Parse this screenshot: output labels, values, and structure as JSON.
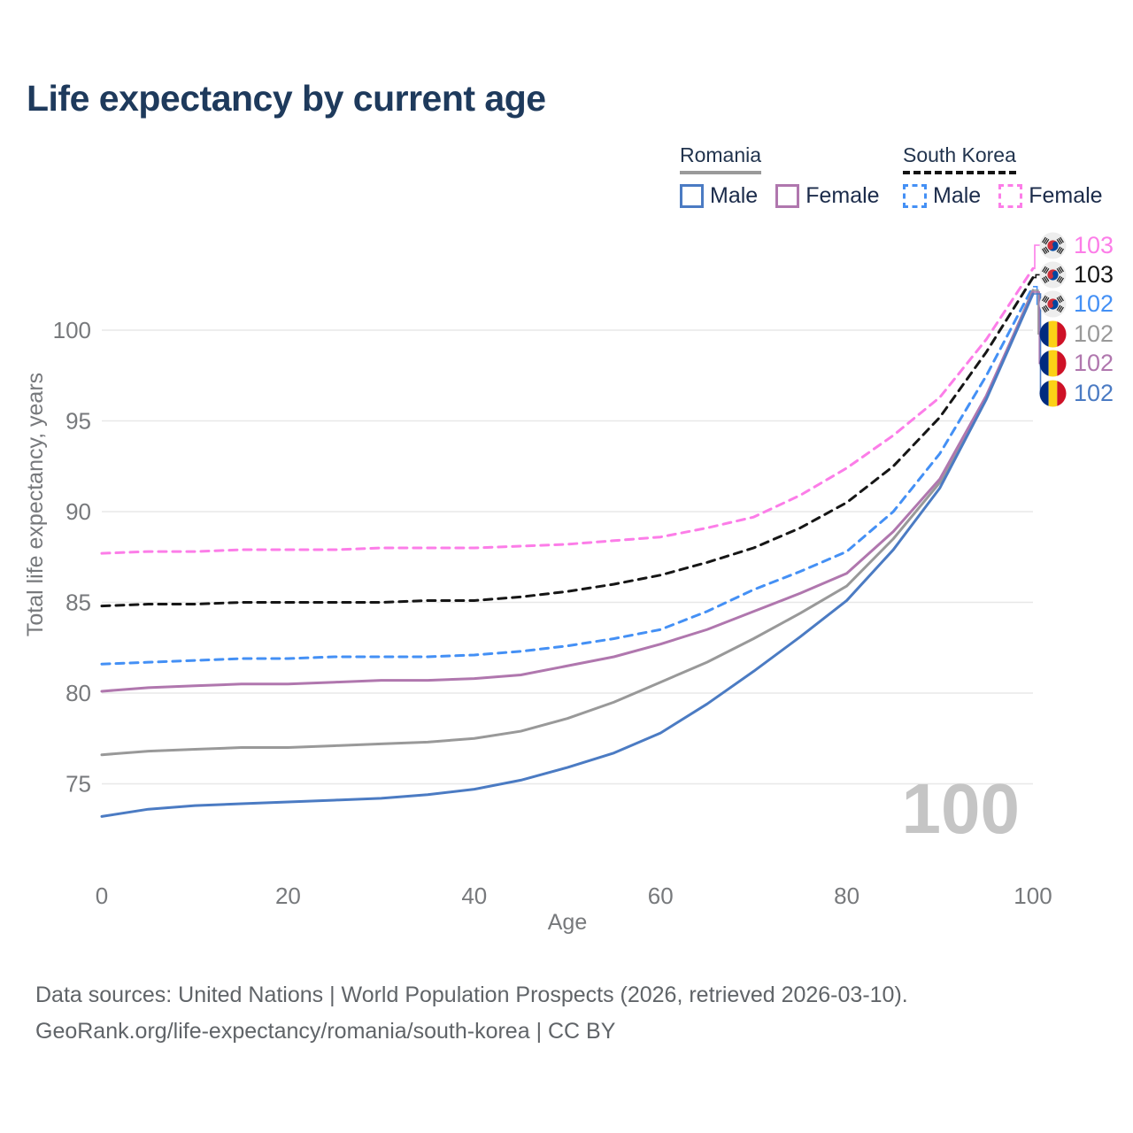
{
  "title": "Life expectancy by current age",
  "legend": {
    "groups": [
      {
        "country": "Romania",
        "line_style": "solid",
        "underline_color": "#9a9a9a",
        "items": [
          {
            "label": "Male",
            "series": "ro_male"
          },
          {
            "label": "Female",
            "series": "ro_female"
          }
        ]
      },
      {
        "country": "South Korea",
        "line_style": "dashed",
        "underline_color": "#141414",
        "items": [
          {
            "label": "Male",
            "series": "kr_male"
          },
          {
            "label": "Female",
            "series": "kr_female"
          }
        ]
      }
    ]
  },
  "chart_data": {
    "type": "line",
    "title": "Life expectancy by current age",
    "xlabel": "Age",
    "ylabel": "Total life expectancy, years",
    "x_ticks": [
      0,
      20,
      40,
      60,
      80,
      100
    ],
    "y_ticks": [
      75,
      80,
      85,
      90,
      95,
      100
    ],
    "xlim": [
      0,
      100
    ],
    "ylim": [
      72.5,
      105
    ],
    "grid": "horizontal-only",
    "legend_position": "top-right",
    "watermark": "100",
    "ages": [
      0,
      5,
      10,
      15,
      20,
      25,
      30,
      35,
      40,
      45,
      50,
      55,
      60,
      65,
      70,
      75,
      80,
      85,
      90,
      95,
      100
    ],
    "series": [
      {
        "id": "kr_female",
        "name": "South Korea Female",
        "country": "South Korea",
        "flag": "kr",
        "color": "#fc7de8",
        "dash": true,
        "end_label": "103",
        "values": [
          87.7,
          87.8,
          87.8,
          87.9,
          87.9,
          87.9,
          88.0,
          88.0,
          88.0,
          88.1,
          88.2,
          88.4,
          88.6,
          89.1,
          89.7,
          90.9,
          92.4,
          94.2,
          96.3,
          99.5,
          103.4
        ]
      },
      {
        "id": "kr_combined",
        "name": "South Korea Combined",
        "country": "South Korea",
        "flag": "kr",
        "color": "#161616",
        "dash": true,
        "end_label": "103",
        "values": [
          84.8,
          84.9,
          84.9,
          85.0,
          85.0,
          85.0,
          85.0,
          85.1,
          85.1,
          85.3,
          85.6,
          86.0,
          86.5,
          87.2,
          88.0,
          89.1,
          90.5,
          92.5,
          95.2,
          98.8,
          102.9
        ]
      },
      {
        "id": "kr_male",
        "name": "South Korea Male",
        "country": "South Korea",
        "flag": "kr",
        "color": "#4490f5",
        "dash": true,
        "end_label": "102",
        "values": [
          81.6,
          81.7,
          81.8,
          81.9,
          81.9,
          82.0,
          82.0,
          82.0,
          82.1,
          82.3,
          82.6,
          83.0,
          83.5,
          84.5,
          85.7,
          86.7,
          87.8,
          90.0,
          93.2,
          97.5,
          102.4
        ]
      },
      {
        "id": "ro_combined",
        "name": "Romania Combined",
        "country": "Romania",
        "flag": "ro",
        "color": "#999999",
        "dash": false,
        "end_label": "102",
        "values": [
          76.6,
          76.8,
          76.9,
          77.0,
          77.0,
          77.1,
          77.2,
          77.3,
          77.5,
          77.9,
          78.6,
          79.5,
          80.6,
          81.7,
          83.0,
          84.4,
          85.9,
          88.5,
          91.6,
          96.3,
          102.2
        ]
      },
      {
        "id": "ro_female",
        "name": "Romania Female",
        "country": "Romania",
        "flag": "ro",
        "color": "#b077ae",
        "dash": false,
        "end_label": "102",
        "values": [
          80.1,
          80.3,
          80.4,
          80.5,
          80.5,
          80.6,
          80.7,
          80.7,
          80.8,
          81.0,
          81.5,
          82.0,
          82.7,
          83.5,
          84.5,
          85.5,
          86.6,
          88.9,
          91.8,
          96.4,
          102.1
        ]
      },
      {
        "id": "ro_male",
        "name": "Romania Male",
        "country": "Romania",
        "flag": "ro",
        "color": "#4b7bc3",
        "dash": false,
        "end_label": "102",
        "values": [
          73.2,
          73.6,
          73.8,
          73.9,
          74.0,
          74.1,
          74.2,
          74.4,
          74.7,
          75.2,
          75.9,
          76.7,
          77.8,
          79.4,
          81.2,
          83.1,
          85.1,
          87.9,
          91.3,
          96.2,
          102.0
        ]
      }
    ]
  },
  "footer": {
    "line1": "Data sources: United Nations | World Population Prospects (2026, retrieved 2026-03-10).",
    "line2": "GeoRank.org/life-expectancy/romania/south-korea | CC BY"
  }
}
